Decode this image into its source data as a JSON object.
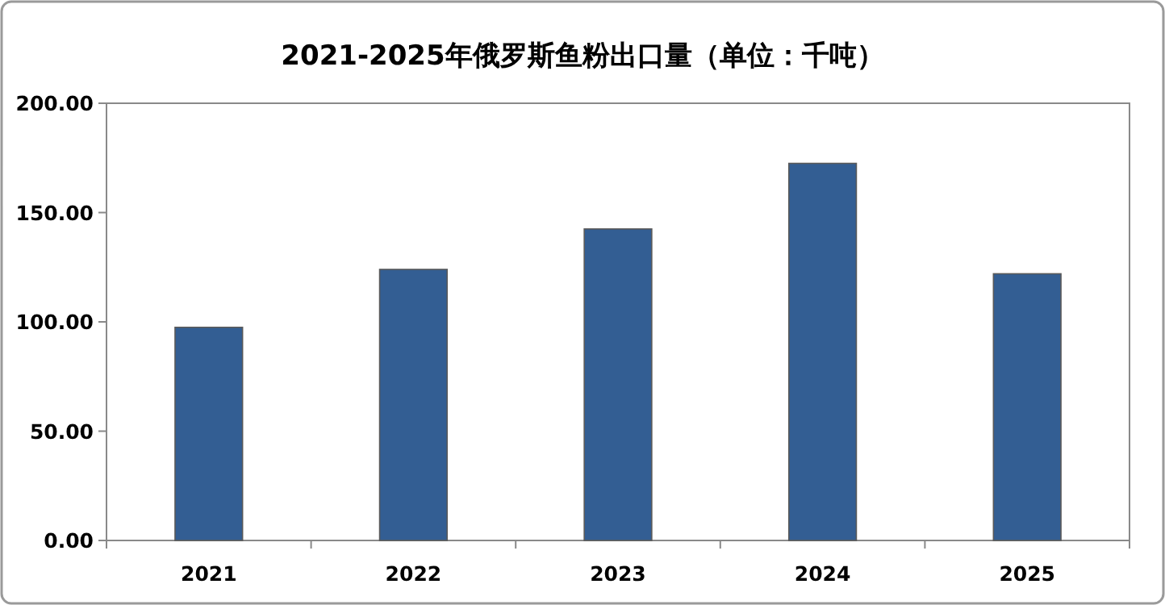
{
  "chart_data": {
    "type": "bar",
    "title": "2021-2025年俄罗斯鱼粉出口量（单位：千吨）",
    "categories": [
      "2021",
      "2022",
      "2023",
      "2024",
      "2025"
    ],
    "values": [
      97.5,
      124,
      142.5,
      172.5,
      122
    ],
    "color": "#335e93",
    "ylim": [
      0,
      200
    ],
    "yticks": [
      {
        "value": 0,
        "label": "0.00"
      },
      {
        "value": 50,
        "label": "50.00"
      },
      {
        "value": 100,
        "label": "100.00"
      },
      {
        "value": 150,
        "label": "150.00"
      },
      {
        "value": 200,
        "label": "200.00"
      }
    ],
    "grid": false
  }
}
